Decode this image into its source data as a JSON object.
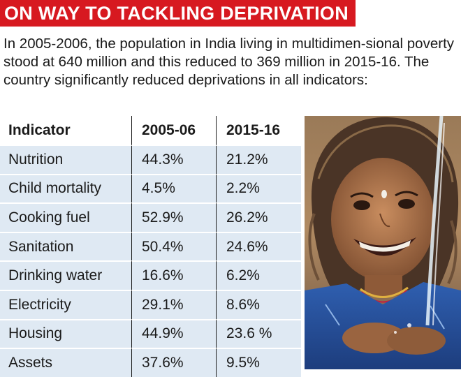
{
  "headline": "ON WAY TO TACKLING DEPRIVATION",
  "intro": "In 2005-2006, the population in India living in multidimen-sional poverty stood at 640 million and this reduced to 369 million in 2015-16. The country significantly reduced deprivations in all indicators:",
  "colors": {
    "headline_bg": "#d71920",
    "row_bg": "#dfe9f3"
  },
  "chart_data": {
    "type": "table",
    "columns": [
      "Indicator",
      "2005-06",
      "2015-16"
    ],
    "rows": [
      [
        "Nutrition",
        "44.3%",
        "21.2%"
      ],
      [
        "Child mortality",
        "4.5%",
        "2.2%"
      ],
      [
        "Cooking fuel",
        "52.9%",
        "26.2%"
      ],
      [
        "Sanitation",
        "50.4%",
        "24.6%"
      ],
      [
        "Drinking water",
        "16.6%",
        "6.2%"
      ],
      [
        "Electricity",
        "29.1%",
        "8.6%"
      ],
      [
        "Housing",
        "44.9%",
        "23.6 %"
      ],
      [
        "Assets",
        "37.6%",
        "9.5%"
      ]
    ]
  },
  "photo": {
    "subject": "smiling girl catching water in cupped hands",
    "icon": "photo-girl-water"
  }
}
